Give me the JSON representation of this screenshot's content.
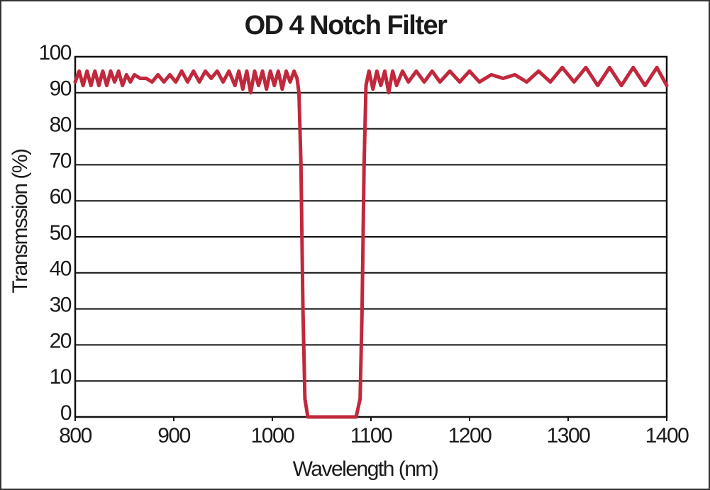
{
  "chart_data": {
    "type": "line",
    "title": "OD 4 Notch Filter",
    "xlabel": "Wavelength (nm)",
    "ylabel": "Transmssion (%)",
    "color": "#c1283c",
    "x": [
      800,
      804,
      808,
      812,
      816,
      820,
      824,
      828,
      832,
      836,
      840,
      844,
      848,
      852,
      856,
      860,
      866,
      872,
      878,
      884,
      890,
      896,
      902,
      908,
      914,
      920,
      926,
      932,
      938,
      944,
      950,
      956,
      962,
      966,
      970,
      974,
      978,
      982,
      986,
      990,
      994,
      998,
      1002,
      1006,
      1010,
      1014,
      1018,
      1022,
      1025,
      1027,
      1029,
      1031,
      1033,
      1036,
      1060,
      1085,
      1089,
      1091,
      1093,
      1095,
      1098,
      1102,
      1106,
      1110,
      1114,
      1118,
      1122,
      1126,
      1132,
      1138,
      1146,
      1154,
      1162,
      1170,
      1180,
      1190,
      1200,
      1210,
      1222,
      1234,
      1246,
      1258,
      1270,
      1282,
      1294,
      1306,
      1318,
      1330,
      1342,
      1354,
      1366,
      1378,
      1390,
      1400
    ],
    "values": [
      93,
      96,
      92,
      96,
      92,
      96,
      92,
      96,
      92,
      96,
      93,
      96,
      92,
      95,
      93,
      95,
      94,
      94,
      93,
      95,
      93,
      95,
      93,
      96,
      93,
      96,
      93,
      96,
      94,
      96,
      93,
      96,
      92,
      96,
      91,
      96,
      90,
      96,
      92,
      96,
      91,
      96,
      92,
      96,
      91,
      96,
      93,
      96,
      94,
      90,
      70,
      30,
      5,
      0,
      0,
      0,
      5,
      30,
      70,
      92,
      96,
      91,
      96,
      92,
      96,
      90,
      96,
      92,
      96,
      93,
      96,
      93,
      96,
      93,
      96,
      93,
      96,
      93,
      95,
      94,
      95,
      93,
      96,
      93,
      97,
      93,
      97,
      92,
      97,
      92,
      97,
      92,
      97,
      92
    ],
    "xlim": [
      800,
      1400
    ],
    "xticks": [
      800,
      900,
      1000,
      1100,
      1200,
      1300,
      1400
    ],
    "ylim": [
      0,
      100
    ],
    "yticks": [
      0,
      10,
      20,
      30,
      40,
      50,
      60,
      70,
      80,
      90,
      100
    ],
    "grid": true
  }
}
